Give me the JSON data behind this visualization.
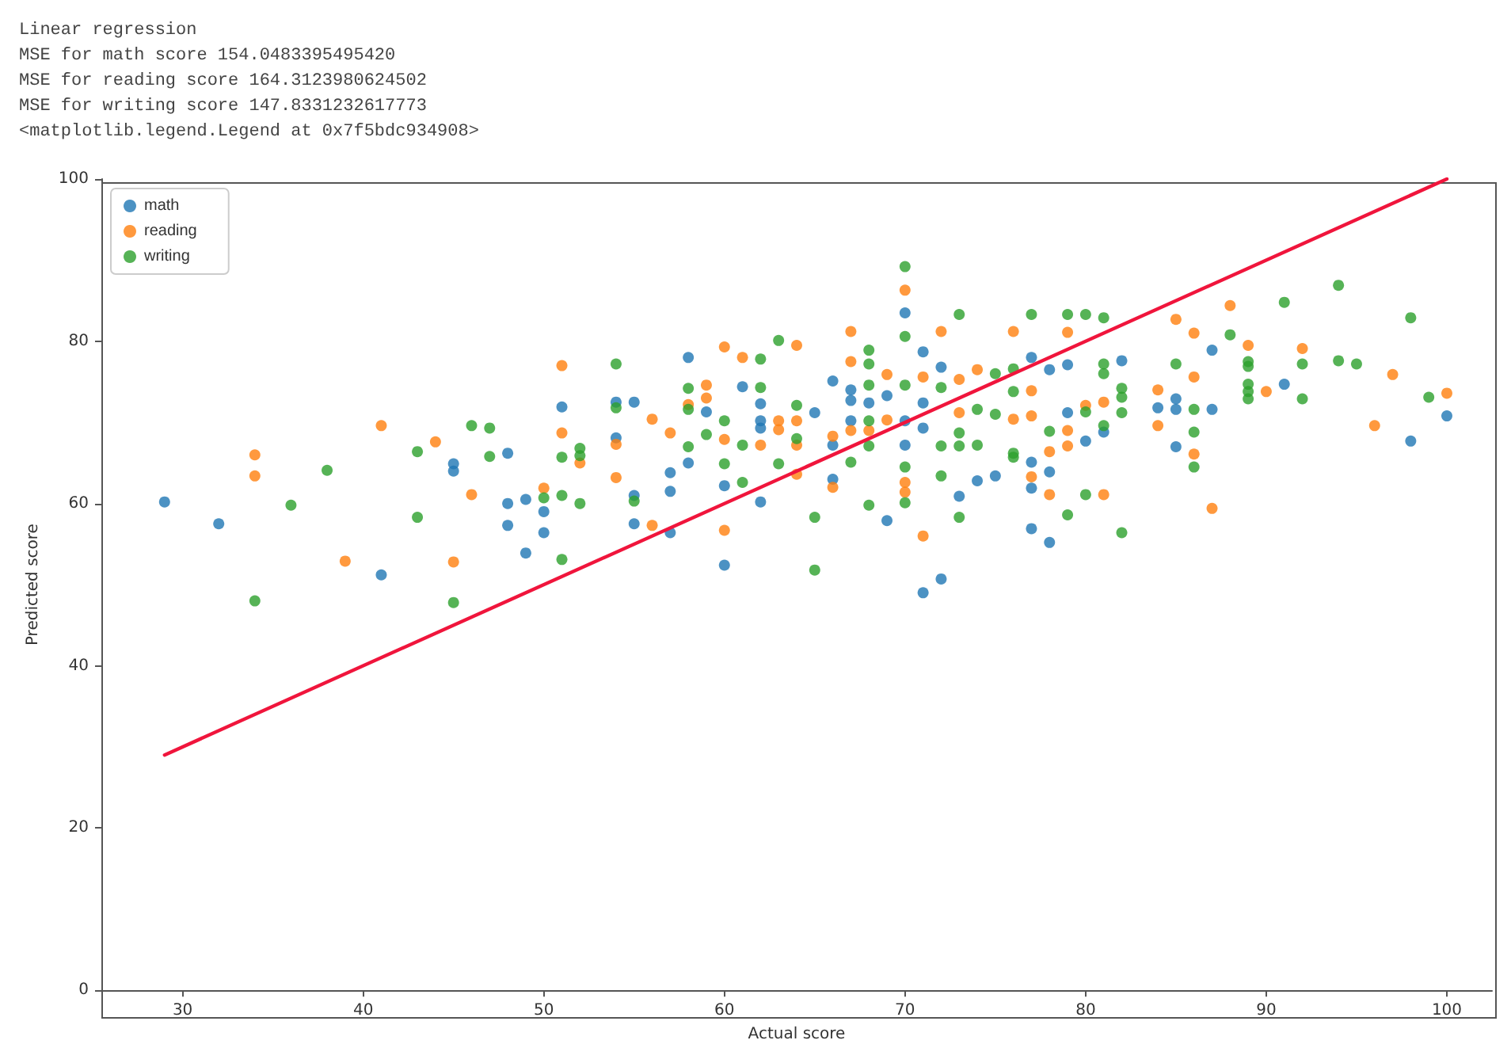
{
  "chart_data": {
    "type": "scatter",
    "annotations": [
      "Linear regression",
      "MSE for math score 154.0483395495420",
      "MSE for reading score 164.3123980624502",
      "MSE for writing score 147.8331232617773",
      "<matplotlib.legend.Legend at 0x7f5bdc934908>"
    ],
    "xlabel": "Actual score",
    "ylabel": "Predicted score",
    "xlim": [
      25.5,
      102.5
    ],
    "ylim": [
      0,
      100
    ],
    "xticks": [
      30,
      40,
      50,
      60,
      70,
      80,
      90,
      100
    ],
    "yticks": [
      0,
      20,
      40,
      60,
      80,
      100
    ],
    "grid": false,
    "legend": "top left",
    "marker": "circle",
    "series": [
      {
        "name": "math",
        "color": "#1f77b4",
        "x": [
          29,
          32,
          41,
          45,
          45,
          48,
          48,
          48,
          49,
          49,
          50,
          50,
          51,
          54,
          54,
          55,
          55,
          55,
          57,
          57,
          57,
          58,
          58,
          59,
          60,
          60,
          61,
          62,
          62,
          62,
          62,
          65,
          66,
          66,
          66,
          67,
          67,
          67,
          68,
          69,
          69,
          70,
          70,
          70,
          71,
          71,
          71,
          71,
          72,
          72,
          73,
          74,
          75,
          77,
          77,
          77,
          77,
          78,
          78,
          78,
          79,
          79,
          80,
          81,
          82,
          84,
          85,
          85,
          85,
          87,
          87,
          91,
          98,
          100
        ],
        "values": [
          60.2,
          57.5,
          51.2,
          64.9,
          64,
          66.2,
          60,
          57.3,
          60.5,
          53.9,
          59,
          56.4,
          71.9,
          72.5,
          68.1,
          72.5,
          61,
          57.5,
          63.8,
          61.5,
          56.4,
          78,
          65,
          71.3,
          62.2,
          52.4,
          74.4,
          72.3,
          70.2,
          69.3,
          60.2,
          71.2,
          75.1,
          67.2,
          63,
          74,
          72.7,
          70.2,
          72.4,
          73.3,
          57.9,
          83.5,
          70.2,
          67.2,
          78.7,
          72.4,
          69.3,
          49,
          76.8,
          50.7,
          60.9,
          62.8,
          63.4,
          78,
          65.1,
          61.9,
          56.9,
          76.5,
          63.9,
          55.2,
          77.1,
          71.2,
          67.7,
          68.8,
          77.6,
          71.8,
          72.9,
          71.6,
          67,
          78.9,
          71.6,
          74.7,
          67.7,
          70.8
        ]
      },
      {
        "name": "reading",
        "color": "#ff7f0e",
        "x": [
          34,
          34,
          39,
          41,
          44,
          45,
          46,
          50,
          51,
          51,
          52,
          54,
          54,
          56,
          56,
          57,
          58,
          59,
          59,
          60,
          60,
          60,
          61,
          62,
          63,
          63,
          64,
          64,
          64,
          64,
          66,
          66,
          67,
          67,
          67,
          68,
          69,
          69,
          70,
          70,
          70,
          71,
          71,
          72,
          73,
          73,
          74,
          76,
          76,
          77,
          77,
          77,
          78,
          78,
          79,
          79,
          79,
          80,
          81,
          81,
          84,
          84,
          85,
          86,
          86,
          86,
          87,
          88,
          89,
          90,
          92,
          96,
          97,
          100
        ],
        "values": [
          66,
          63.4,
          52.9,
          69.6,
          67.6,
          52.8,
          61.1,
          61.9,
          77,
          68.7,
          65,
          67.3,
          63.2,
          70.4,
          57.3,
          68.7,
          72.2,
          74.6,
          73,
          79.3,
          67.9,
          56.7,
          78,
          67.2,
          70.2,
          69.1,
          79.5,
          70.2,
          67.2,
          63.6,
          68.3,
          62,
          81.2,
          77.5,
          69,
          69,
          75.9,
          70.3,
          86.3,
          62.6,
          61.4,
          75.6,
          56,
          81.2,
          75.3,
          71.2,
          76.5,
          81.2,
          70.4,
          73.9,
          70.8,
          63.3,
          66.4,
          61.1,
          81.1,
          69,
          67.1,
          72.1,
          72.5,
          61.1,
          74,
          69.6,
          82.7,
          81,
          75.6,
          66.1,
          59.4,
          84.4,
          79.5,
          73.8,
          79.1,
          69.6,
          75.9,
          73.6
        ]
      },
      {
        "name": "writing",
        "color": "#2ca02c",
        "x": [
          34,
          36,
          38,
          43,
          43,
          45,
          46,
          47,
          47,
          50,
          51,
          51,
          51,
          52,
          52,
          52,
          54,
          54,
          55,
          58,
          58,
          58,
          59,
          60,
          60,
          61,
          61,
          62,
          62,
          63,
          63,
          64,
          64,
          65,
          65,
          67,
          68,
          68,
          68,
          68,
          68,
          68,
          70,
          70,
          70,
          70,
          70,
          72,
          72,
          72,
          73,
          73,
          73,
          73,
          74,
          74,
          75,
          75,
          76,
          76,
          76,
          76,
          77,
          78,
          79,
          79,
          80,
          80,
          80,
          81,
          81,
          81,
          81,
          82,
          82,
          82,
          82,
          85,
          86,
          86,
          86,
          88,
          89,
          89,
          89,
          89,
          89,
          91,
          92,
          92,
          94,
          94,
          95,
          98,
          99
        ],
        "values": [
          48,
          59.8,
          64.1,
          66.4,
          58.3,
          47.8,
          69.6,
          69.3,
          65.8,
          60.7,
          65.7,
          61,
          53.1,
          66.8,
          65.9,
          60,
          77.2,
          71.8,
          60.3,
          74.2,
          71.6,
          67,
          68.5,
          70.2,
          64.9,
          67.2,
          62.6,
          77.8,
          74.3,
          80.1,
          64.9,
          72.1,
          68,
          58.3,
          51.8,
          65.1,
          78.9,
          77.2,
          74.6,
          70.2,
          67.1,
          59.8,
          89.2,
          80.6,
          74.6,
          64.5,
          60.1,
          74.3,
          67.1,
          63.4,
          83.3,
          68.7,
          67.1,
          58.3,
          71.6,
          67.2,
          76,
          71,
          76.6,
          66.2,
          73.8,
          65.7,
          83.3,
          68.9,
          83.3,
          58.6,
          83.3,
          71.3,
          61.1,
          82.9,
          77.2,
          76,
          69.6,
          74.2,
          73.1,
          71.2,
          56.4,
          77.2,
          71.6,
          68.8,
          64.5,
          80.8,
          77.5,
          76.9,
          74.7,
          73.8,
          72.9,
          84.8,
          77.2,
          72.9,
          86.9,
          77.6,
          77.2,
          82.9,
          73.1
        ]
      },
      {
        "type": "line",
        "marker": "none",
        "color": "#f0153c",
        "x": [
          29,
          100
        ],
        "values": [
          29,
          100
        ]
      }
    ]
  }
}
